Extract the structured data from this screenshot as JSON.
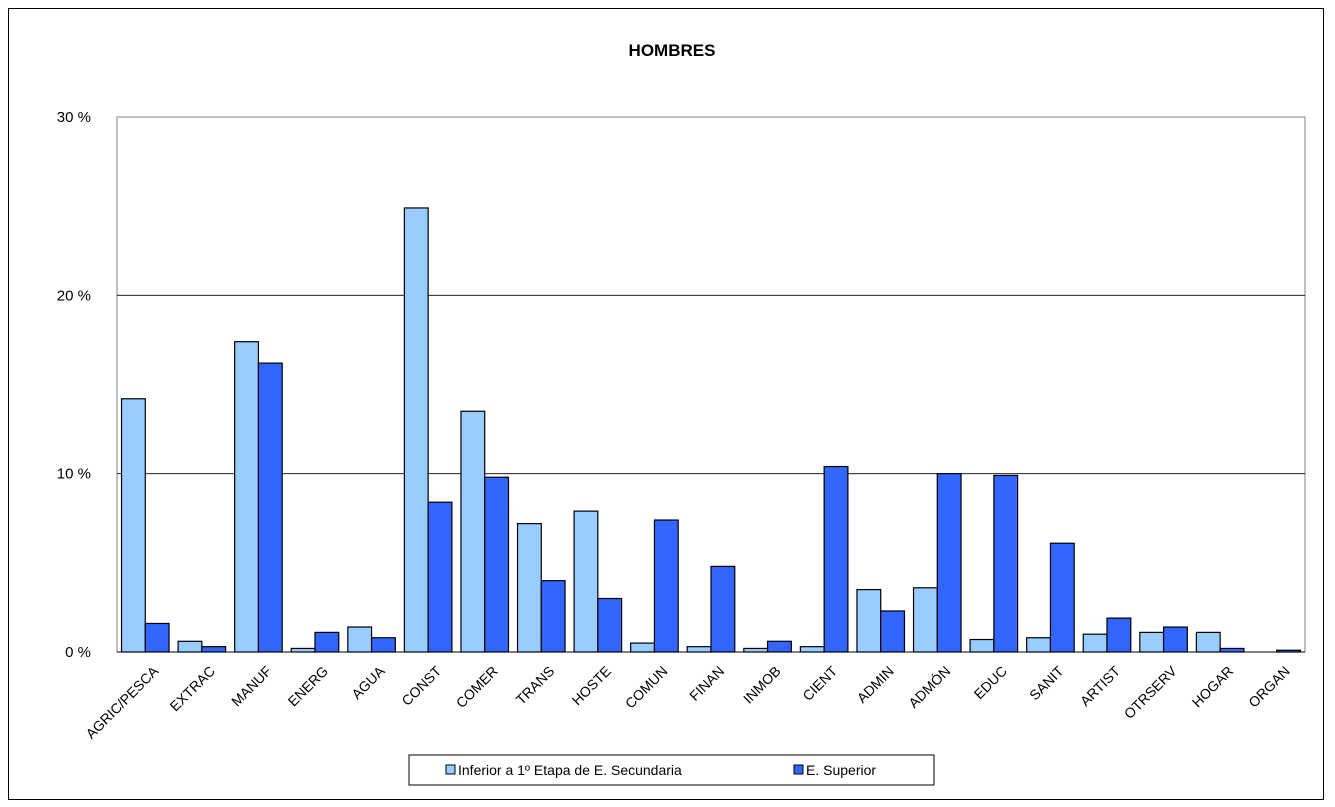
{
  "chart_data": {
    "type": "bar",
    "title": "HOMBRES",
    "xlabel": "",
    "ylabel": "",
    "ylim": [
      0,
      30
    ],
    "yticks": [
      0,
      10,
      20,
      30
    ],
    "ytick_labels": [
      "0 %",
      "10 %",
      "20 %",
      "30 %"
    ],
    "grid": true,
    "legend_position": "bottom",
    "categories": [
      "AGRIC/PESCA",
      "EXTRAC",
      "MANUF",
      "ENERG",
      "AGUA",
      "CONST",
      "COMER",
      "TRANS",
      "HOSTE",
      "COMUN",
      "FINAN",
      "INMOB",
      "CIENT",
      "ADMIN",
      "ADMÓN",
      "EDUC",
      "SANIT",
      "ARTIST",
      "OTRSERV",
      "HOGAR",
      "ORGAN"
    ],
    "series": [
      {
        "name": "Inferior a 1º Etapa de E. Secundaria",
        "color": "#99CCFF",
        "values": [
          14.2,
          0.6,
          17.4,
          0.2,
          1.4,
          24.9,
          13.5,
          7.2,
          7.9,
          0.5,
          0.3,
          0.2,
          0.3,
          3.5,
          3.6,
          0.7,
          0.8,
          1.0,
          1.1,
          1.1,
          0.0
        ]
      },
      {
        "name": "E. Superior",
        "color": "#3366FF",
        "values": [
          1.6,
          0.3,
          16.2,
          1.1,
          0.8,
          8.4,
          9.8,
          4.0,
          3.0,
          7.4,
          4.8,
          0.6,
          10.4,
          2.3,
          10.0,
          9.9,
          6.1,
          1.9,
          1.4,
          0.2,
          0.1
        ]
      }
    ]
  }
}
